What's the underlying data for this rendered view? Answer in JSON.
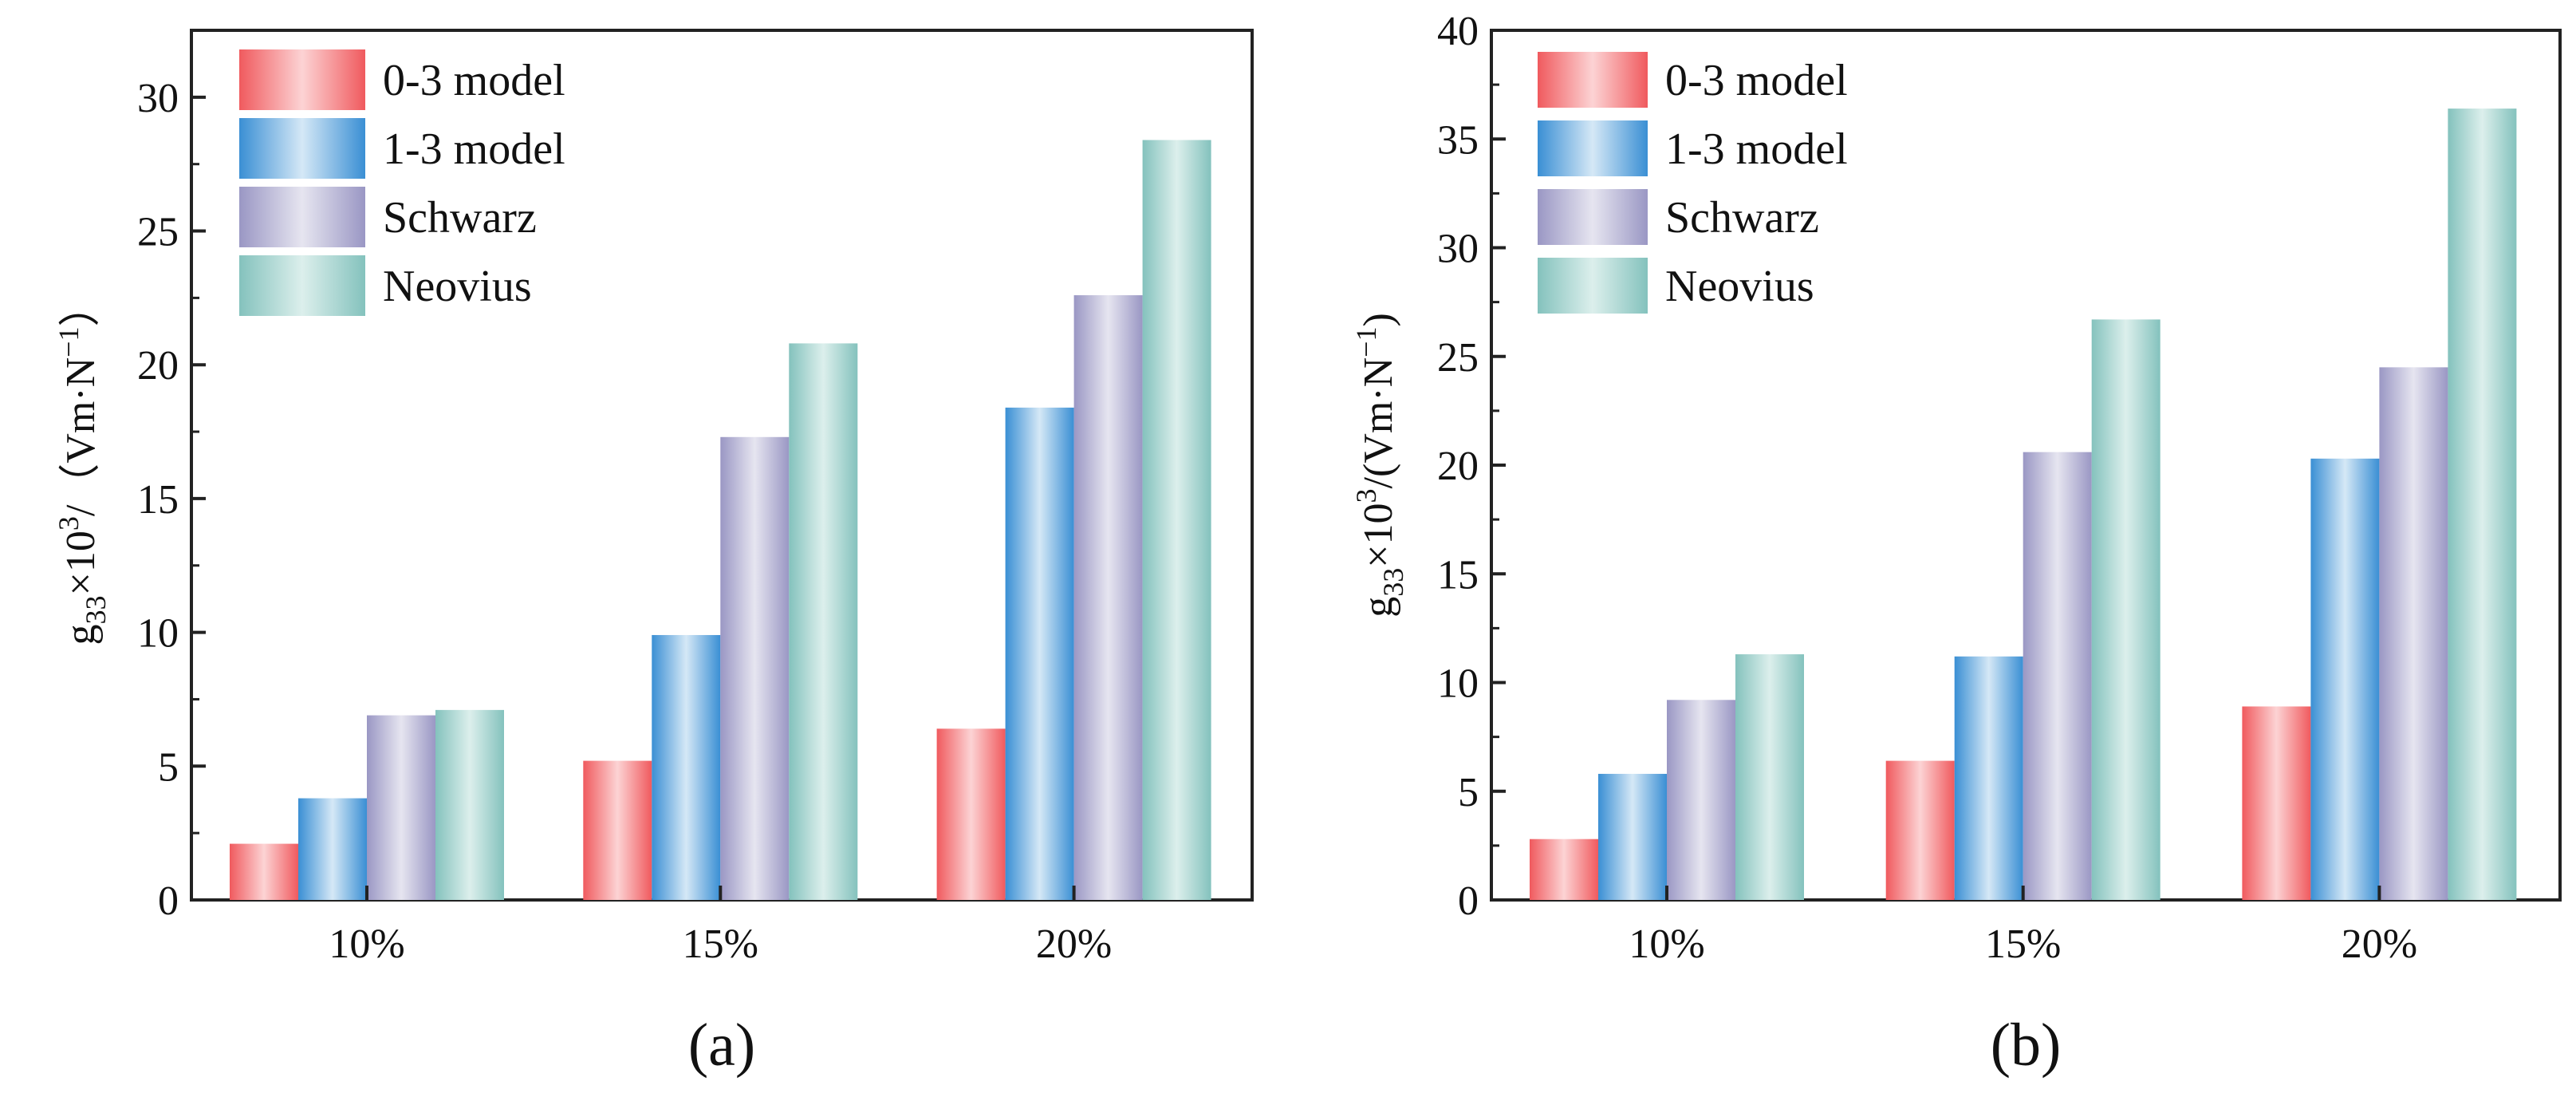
{
  "chart_data": [
    {
      "type": "bar",
      "panel_label": "(a)",
      "categories": [
        "10%",
        "15%",
        "20%"
      ],
      "series": [
        {
          "name": "0-3 model",
          "values": [
            2.1,
            5.2,
            6.4
          ]
        },
        {
          "name": "1-3 model",
          "values": [
            3.8,
            9.9,
            18.4
          ]
        },
        {
          "name": "Schwarz",
          "values": [
            6.9,
            17.3,
            22.6
          ]
        },
        {
          "name": "Neovius",
          "values": [
            7.1,
            20.8,
            28.4
          ]
        }
      ],
      "ylabel": "g33×10³/（Vm·N⁻¹）",
      "ylim": [
        0,
        32.5
      ],
      "yticks": [
        "0",
        "5",
        "10",
        "15",
        "20",
        "25",
        "30"
      ],
      "legend_position": "top-left"
    },
    {
      "type": "bar",
      "panel_label": "(b)",
      "categories": [
        "10%",
        "15%",
        "20%"
      ],
      "series": [
        {
          "name": "0-3 model",
          "values": [
            2.8,
            6.4,
            8.9
          ]
        },
        {
          "name": "1-3 model",
          "values": [
            5.8,
            11.2,
            20.3
          ]
        },
        {
          "name": "Schwarz",
          "values": [
            9.2,
            20.6,
            24.5
          ]
        },
        {
          "name": "Neovius",
          "values": [
            11.3,
            26.7,
            36.4
          ]
        }
      ],
      "ylabel": "g33×10³/(Vm·N⁻¹)",
      "ylim": [
        0,
        40
      ],
      "yticks": [
        "0",
        "5",
        "10",
        "15",
        "20",
        "25",
        "30",
        "35",
        "40"
      ],
      "legend_position": "top-left"
    }
  ],
  "colors": {
    "series": [
      "#f05a5e",
      "#3a8fd4",
      "#9a97c4",
      "#84c2bd"
    ],
    "series_light": [
      "#fcd3d4",
      "#d5e8f6",
      "#e6e5f0",
      "#dcefec"
    ]
  }
}
